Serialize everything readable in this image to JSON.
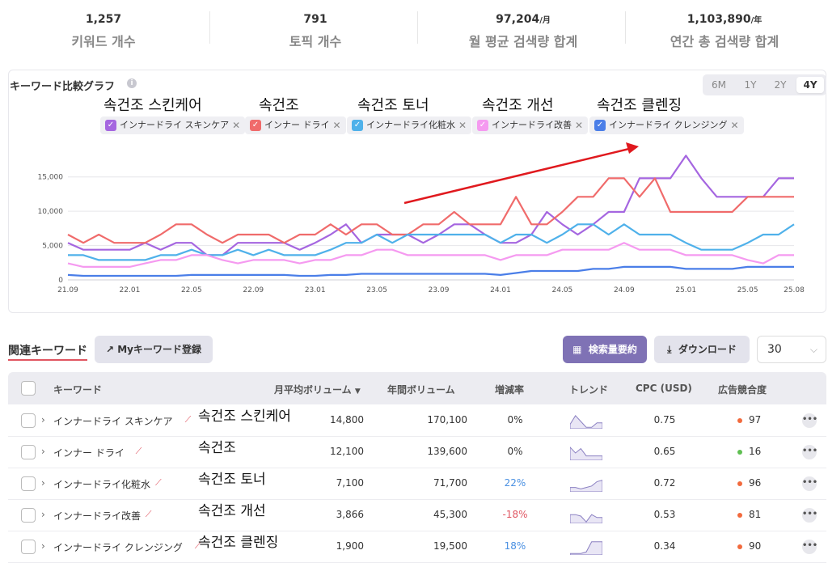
{
  "summary": [
    {
      "value": "1,257",
      "unit": "",
      "label": "키워드 개수"
    },
    {
      "value": "791",
      "unit": "",
      "label": "토픽 개수"
    },
    {
      "value": "97,204",
      "unit": "/月",
      "label": "월 평균 검색량 합계"
    },
    {
      "value": "1,103,890",
      "unit": "/年",
      "label": "연간 총 검색량 합계"
    }
  ],
  "chart_section": {
    "title": "キーワード比較グラフ",
    "info_icon": "info-icon",
    "ranges": [
      "6M",
      "1Y",
      "2Y",
      "4Y"
    ],
    "active_range": "4Y",
    "korean_labels": [
      "속건조 스킨케어",
      "속건조",
      "속건조 토너",
      "속건조 개선",
      "속건조 클렌징"
    ],
    "chips": [
      {
        "label": "インナードライ スキンケア",
        "color": "#a566e0"
      },
      {
        "label": "インナー ドライ",
        "color": "#f06b6b"
      },
      {
        "label": "インナードライ化粧水",
        "color": "#4fb1ea"
      },
      {
        "label": "インナードライ改善",
        "color": "#f59af0"
      },
      {
        "label": "インナードライ クレンジング",
        "color": "#4a7ee8"
      }
    ],
    "annotation": "red-arrow"
  },
  "chart_data": {
    "type": "line",
    "x": [
      "21.09",
      "21.10",
      "21.11",
      "21.12",
      "22.01",
      "22.02",
      "22.03",
      "22.04",
      "22.05",
      "22.06",
      "22.07",
      "22.08",
      "22.09",
      "22.10",
      "22.11",
      "22.12",
      "23.01",
      "23.02",
      "23.03",
      "23.04",
      "23.05",
      "23.06",
      "23.07",
      "23.08",
      "23.09",
      "23.10",
      "23.11",
      "23.12",
      "24.01",
      "24.02",
      "24.03",
      "24.04",
      "24.05",
      "24.06",
      "24.07",
      "24.08",
      "24.09",
      "24.10",
      "24.11",
      "24.12",
      "25.01",
      "25.02",
      "25.03",
      "25.04",
      "25.05",
      "25.06",
      "25.07",
      "25.08"
    ],
    "xticks": [
      "21.09",
      "22.01",
      "22.05",
      "22.09",
      "23.01",
      "23.05",
      "23.09",
      "24.01",
      "24.05",
      "24.09",
      "25.01",
      "25.05",
      "25.08"
    ],
    "yticks": [
      "0",
      "5,000",
      "10,000",
      "15,000"
    ],
    "ylim": [
      0,
      18500
    ],
    "series": [
      {
        "name": "インナードライ スキンケア",
        "color": "#a566e0",
        "values": [
          5400,
          4400,
          4400,
          4400,
          4400,
          5400,
          4400,
          5400,
          5400,
          3600,
          3600,
          5400,
          5400,
          5400,
          5400,
          4400,
          5400,
          6600,
          8100,
          5400,
          6600,
          6600,
          6600,
          5400,
          6600,
          8100,
          8100,
          6600,
          5400,
          5400,
          6600,
          9900,
          8100,
          6600,
          8100,
          9900,
          9900,
          14800,
          14800,
          14800,
          18100,
          14800,
          12100,
          12100,
          12100,
          12100,
          14800,
          14800
        ]
      },
      {
        "name": "インナー ドライ",
        "color": "#f06b6b",
        "values": [
          6600,
          5400,
          6600,
          5400,
          5400,
          5400,
          6600,
          8100,
          8100,
          6600,
          5400,
          6600,
          6600,
          6600,
          5400,
          6600,
          6600,
          8100,
          6600,
          8100,
          8100,
          6600,
          6600,
          8100,
          8100,
          9900,
          8100,
          8100,
          8100,
          12100,
          8100,
          8100,
          9900,
          12100,
          12100,
          14800,
          14800,
          12100,
          14800,
          9900,
          9900,
          9900,
          9900,
          9900,
          12100,
          12100,
          12100,
          12100
        ]
      },
      {
        "name": "インナードライ化粧水",
        "color": "#4fb1ea",
        "values": [
          3600,
          3600,
          2900,
          2900,
          2900,
          2900,
          3600,
          3600,
          4400,
          3600,
          3600,
          4400,
          3600,
          4400,
          3600,
          3600,
          3600,
          4400,
          5400,
          5400,
          6600,
          5400,
          6600,
          6600,
          6600,
          6600,
          6600,
          6600,
          5400,
          6600,
          6600,
          5400,
          6600,
          8100,
          8100,
          6600,
          8100,
          6600,
          6600,
          6600,
          5400,
          4400,
          4400,
          4400,
          5400,
          6600,
          6600,
          8100
        ]
      },
      {
        "name": "インナードライ改善",
        "color": "#f59af0",
        "values": [
          2400,
          1900,
          1900,
          1900,
          1900,
          2400,
          2900,
          2900,
          3600,
          3600,
          2900,
          2400,
          2900,
          2900,
          2900,
          2400,
          2900,
          2900,
          3600,
          3600,
          4400,
          4400,
          3600,
          3600,
          3600,
          3600,
          3600,
          3600,
          2900,
          3600,
          3600,
          3600,
          4400,
          4400,
          4400,
          4400,
          5400,
          4400,
          4400,
          4400,
          3600,
          3600,
          3600,
          3600,
          2900,
          2400,
          3600,
          3600
        ]
      },
      {
        "name": "インナードライ クレンジング",
        "color": "#4a7ee8",
        "values": [
          720,
          590,
          590,
          590,
          590,
          590,
          590,
          590,
          720,
          720,
          720,
          720,
          720,
          720,
          720,
          590,
          590,
          720,
          720,
          880,
          880,
          880,
          880,
          880,
          880,
          880,
          880,
          880,
          720,
          1000,
          1300,
          1300,
          1300,
          1300,
          1600,
          1600,
          1900,
          1900,
          1900,
          1900,
          1600,
          1600,
          1600,
          1600,
          1900,
          1900,
          1900,
          1900
        ]
      }
    ]
  },
  "related": {
    "tab": "関連キーワード",
    "my_button": "Myキーワード登録",
    "summary_button": "検索量要約",
    "download_button": "ダウンロード",
    "page_size": "30",
    "columns": [
      "キーワード",
      "月平均ボリューム",
      "年間ボリューム",
      "増減率",
      "トレンド",
      "CPC (USD)",
      "広告競合度"
    ],
    "sort_indicator": "▼",
    "rows": [
      {
        "keyword": "インナードライ スキンケア",
        "korean": "속건조 스킨케어",
        "monthly": "14,800",
        "yearly": "170,100",
        "change": "0%",
        "change_color": "#333333",
        "cpc": "0.75",
        "comp": "97",
        "comp_color": "#f26a3d",
        "spark": [
          0.3,
          0.9,
          0.5,
          0.1,
          0.1,
          0.4,
          0.4
        ]
      },
      {
        "keyword": "インナー ドライ",
        "korean": "속건조",
        "monthly": "12,100",
        "yearly": "139,600",
        "change": "0%",
        "change_color": "#333333",
        "cpc": "0.65",
        "comp": "16",
        "comp_color": "#5fbf52",
        "spark": [
          0.9,
          0.5,
          0.8,
          0.3,
          0.3,
          0.3,
          0.3
        ]
      },
      {
        "keyword": "インナードライ化粧水",
        "korean": "속건조 토너",
        "monthly": "7,100",
        "yearly": "71,700",
        "change": "22%",
        "change_color": "#4a90e2",
        "cpc": "0.72",
        "comp": "96",
        "comp_color": "#f26a3d",
        "spark": [
          0.3,
          0.3,
          0.2,
          0.3,
          0.4,
          0.7,
          0.8
        ]
      },
      {
        "keyword": "インナードライ改善",
        "korean": "속건조 개선",
        "monthly": "3,866",
        "yearly": "45,300",
        "change": "-18%",
        "change_color": "#e05561",
        "cpc": "0.53",
        "comp": "81",
        "comp_color": "#f26a3d",
        "spark": [
          0.6,
          0.6,
          0.5,
          0.1,
          0.6,
          0.4,
          0.4
        ]
      },
      {
        "keyword": "インナードライ クレンジング",
        "korean": "속건조 클렌징",
        "monthly": "1,900",
        "yearly": "19,500",
        "change": "18%",
        "change_color": "#4a90e2",
        "cpc": "0.34",
        "comp": "90",
        "comp_color": "#f26a3d",
        "spark": [
          0.1,
          0.1,
          0.1,
          0.2,
          0.9,
          0.9,
          0.9
        ]
      }
    ]
  }
}
